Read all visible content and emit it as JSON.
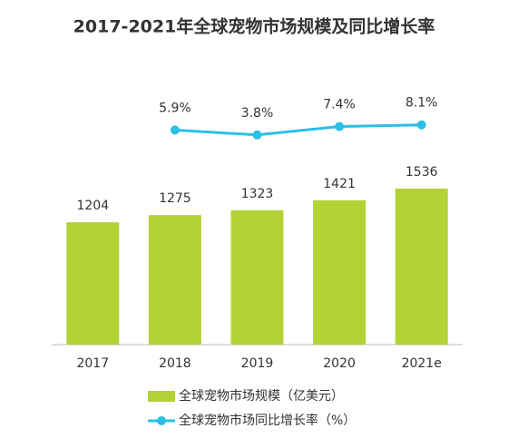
{
  "chart_data": {
    "type": "bar_line",
    "title": "2017-2021年全球宠物市场规模及同比增长率",
    "categories": [
      "2017",
      "2018",
      "2019",
      "2020",
      "2021e"
    ],
    "series": [
      {
        "name": "全球宠物市场规模（亿美元）",
        "type": "bar",
        "color": "#b3d235",
        "values": [
          1204,
          1275,
          1323,
          1421,
          1536
        ]
      },
      {
        "name": "全球宠物市场同比增长率（%）",
        "type": "line",
        "axis": "y2",
        "color": "#2bbfe8",
        "values": [
          null,
          5.9,
          3.8,
          7.4,
          8.1
        ],
        "value_labels": [
          null,
          "5.9%",
          "3.8%",
          "7.4%",
          "8.1%"
        ]
      }
    ],
    "ylim": [
      0,
      2000
    ],
    "y2lim": [
      -86,
      1
    ],
    "legend": "bottom"
  }
}
